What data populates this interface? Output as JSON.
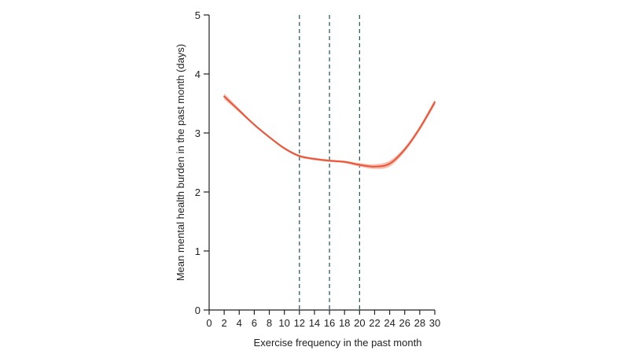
{
  "chart_data": {
    "type": "line",
    "title": "",
    "xlabel": "Exercise frequency in the past month",
    "ylabel": "Mean mental health burden in the past month (days)",
    "xlim": [
      0,
      30
    ],
    "ylim": [
      0,
      5
    ],
    "x_ticks": [
      0,
      2,
      4,
      6,
      8,
      10,
      12,
      14,
      16,
      18,
      20,
      22,
      24,
      26,
      28,
      30
    ],
    "y_ticks": [
      0,
      1,
      2,
      3,
      4,
      5
    ],
    "grid": false,
    "legend": "none",
    "reference_lines_x": [
      12,
      16,
      20
    ],
    "series": [
      {
        "x": [
          2,
          4,
          6,
          8,
          10,
          12,
          14,
          16,
          18,
          20,
          22,
          24,
          26,
          28,
          30
        ],
        "y": [
          3.62,
          3.38,
          3.14,
          2.93,
          2.74,
          2.61,
          2.56,
          2.53,
          2.51,
          2.46,
          2.43,
          2.48,
          2.72,
          3.08,
          3.52
        ],
        "ci_halfwidth": [
          0.05,
          0.03,
          0.02,
          0.02,
          0.02,
          0.02,
          0.02,
          0.02,
          0.02,
          0.03,
          0.04,
          0.05,
          0.04,
          0.04,
          0.05
        ]
      }
    ],
    "colors": {
      "line": "#e8553a",
      "band": "#f4a996",
      "reference_line": "#2f5d62",
      "axis": "#222222"
    }
  }
}
